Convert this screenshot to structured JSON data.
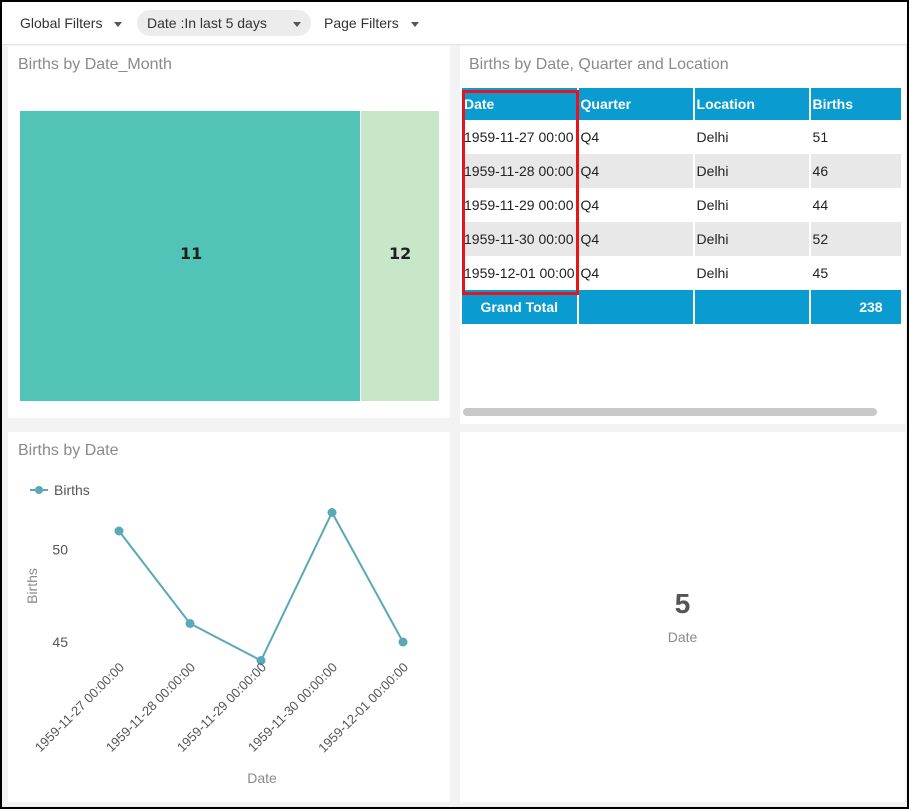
{
  "filters": {
    "global": "Global Filters",
    "date": "Date :In last 5 days",
    "page": "Page Filters"
  },
  "treemap": {
    "title": "Births by Date_Month",
    "blocks": [
      {
        "label": "11",
        "color": "#52c3b7"
      },
      {
        "label": "12",
        "color": "#c8e6c8"
      }
    ]
  },
  "table": {
    "title": "Births by Date, Quarter and Location",
    "columns": [
      "Date",
      "Quarter",
      "Location",
      "Births"
    ],
    "rows": [
      [
        "1959-11-27 00:00",
        "Q4",
        "Delhi",
        "51"
      ],
      [
        "1959-11-28 00:00",
        "Q4",
        "Delhi",
        "46"
      ],
      [
        "1959-11-29 00:00",
        "Q4",
        "Delhi",
        "44"
      ],
      [
        "1959-11-30 00:00",
        "Q4",
        "Delhi",
        "52"
      ],
      [
        "1959-12-01 00:00",
        "Q4",
        "Delhi",
        "45"
      ]
    ],
    "total_label": "Grand Total",
    "total_value": "238",
    "header_color": "#0a9bd0",
    "highlight_color": "#e8141b"
  },
  "line_chart": {
    "title": "Births by Date",
    "chart_data": {
      "type": "line",
      "categories": [
        "1959-11-27 00:00:00",
        "1959-11-28 00:00:00",
        "1959-11-29 00:00:00",
        "1959-11-30 00:00:00",
        "1959-12-01 00:00:00"
      ],
      "series": [
        {
          "name": "Births",
          "values": [
            51,
            46,
            44,
            52,
            45
          ]
        }
      ],
      "xlabel": "Date",
      "ylabel": "Births",
      "yticks": [
        45,
        50
      ],
      "ylim": [
        43,
        53
      ],
      "legend": "top-left",
      "color": "#5aa8b8"
    }
  },
  "kpi": {
    "value": "5",
    "label": "Date"
  }
}
